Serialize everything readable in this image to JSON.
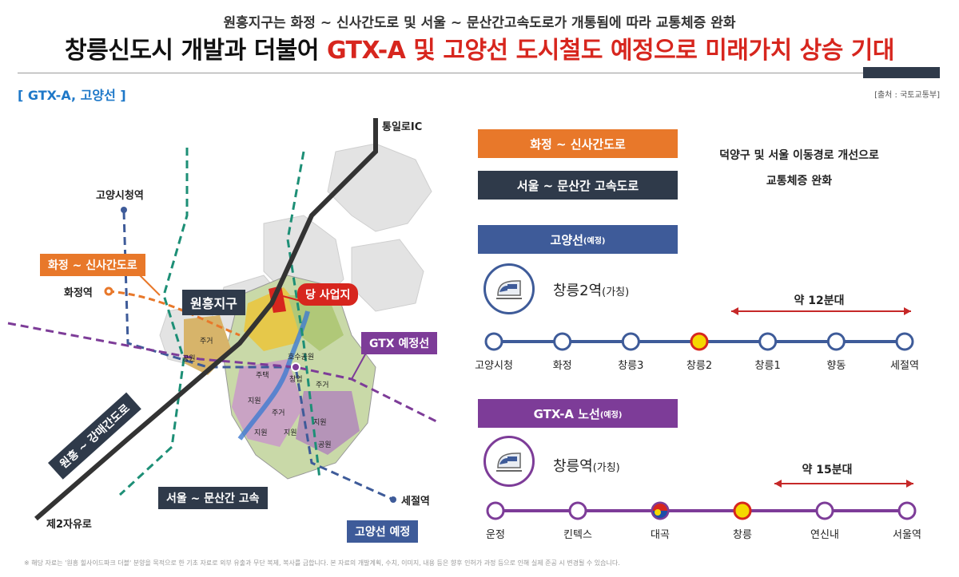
{
  "header": {
    "subtitle": "원흥지구는 화정 ~ 신사간도로 및 서울 ~ 문산간고속도로가 개통됨에 따라 교통체증 완화",
    "title_main": "창릉신도시 개발과 더불어 ",
    "title_highlight": "GTX-A 및 고양선 도시철도 예정으로 미래가치 상승 기대"
  },
  "section_label": "[ GTX-A, 고양선 ]",
  "source": "[출처 : 국토교통부]",
  "map": {
    "labels": {
      "dongilro_ic": "통일로IC",
      "goyang_cityhall": "고양시청역",
      "hwajeong_sinsa_road": "화정 ~ 신사간도로",
      "hwajeong_station": "화정역",
      "wonheung_district": "원흥지구",
      "our_site": "당 사업지",
      "gtx_planned": "GTX 예정선",
      "wonheung_gangmae_road": "원흥 ~ 강매간도로",
      "seoul_munsan": "서울 ~ 문산간 고속",
      "sejeol_station": "세절역",
      "goyang_line_planned": "고양선 예정",
      "jayuro": "제2자유로"
    },
    "zones": [
      "주거",
      "공원",
      "주택",
      "지원",
      "주거",
      "지원",
      "지원",
      "지원",
      "공원",
      "주거",
      "호수공원",
      "창업"
    ]
  },
  "legend": {
    "road1": "화정 ~ 신사간도로",
    "road2": "서울 ~ 문산간 고속도로",
    "road_info_line1": "덕양구 및 서울 이동경로 개선으로",
    "road_info_line2": "교통체증 완화"
  },
  "goyang_line": {
    "title": "고양선",
    "title_suffix": "(예정)",
    "icon": "train-icon",
    "station_name": "창릉2역",
    "station_suffix": "(가칭)",
    "duration": "약 12분대",
    "stations": [
      "고양시청",
      "화정",
      "창릉3",
      "창릉2",
      "창릉1",
      "향동",
      "세절역"
    ],
    "highlight_index": 3,
    "color": "#3e5b99"
  },
  "gtx_line": {
    "title": "GTX-A 노선",
    "title_suffix": "(예정)",
    "icon": "train-icon",
    "station_name": "창릉역",
    "station_suffix": "(가칭)",
    "duration": "약 15분대",
    "stations": [
      "운정",
      "킨텍스",
      "대곡",
      "창릉",
      "연신내",
      "서울역"
    ],
    "highlight_index": 3,
    "transfer_index": 2,
    "color": "#7d3c98"
  },
  "colors": {
    "orange": "#e8782a",
    "navy": "#2f3a4a",
    "blue": "#3e5b99",
    "purple": "#7d3c98",
    "red": "#d7261e",
    "arrow_red": "#c62828"
  },
  "footnote": "※ 해당 자료는 '원흥 힐사이드파크 더블' 분양을 목적으로 한 기초 자료로 외부 유출과 무단 복제, 복사를 금합니다. 본 자료의 개발계획, 수치, 이미지, 내용 등은 향후 인허가 과정 등으로 인해 실제 준공 시 변경될 수 있습니다."
}
